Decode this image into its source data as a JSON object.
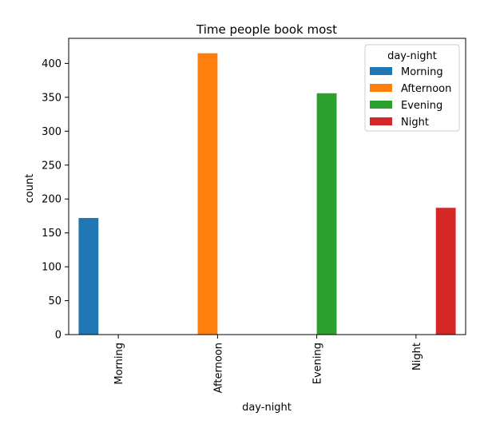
{
  "chart_data": {
    "type": "bar",
    "title": "Time people book most",
    "xlabel": "day-night",
    "ylabel": "count",
    "categories": [
      "Morning",
      "Afternoon",
      "Evening",
      "Night"
    ],
    "series": [
      {
        "name": "Morning",
        "color": "#1f77b4",
        "values": [
          172,
          0,
          0,
          0
        ]
      },
      {
        "name": "Afternoon",
        "color": "#ff7f0e",
        "values": [
          0,
          415,
          0,
          0
        ]
      },
      {
        "name": "Evening",
        "color": "#2ca02c",
        "values": [
          0,
          0,
          356,
          0
        ]
      },
      {
        "name": "Night",
        "color": "#d62728",
        "values": [
          0,
          0,
          0,
          187
        ]
      }
    ],
    "ylim": [
      0,
      437
    ],
    "yticks": [
      0,
      50,
      100,
      150,
      200,
      250,
      300,
      350,
      400
    ],
    "legend": {
      "title": "day-night",
      "placement": "top-right"
    },
    "grid": false
  }
}
